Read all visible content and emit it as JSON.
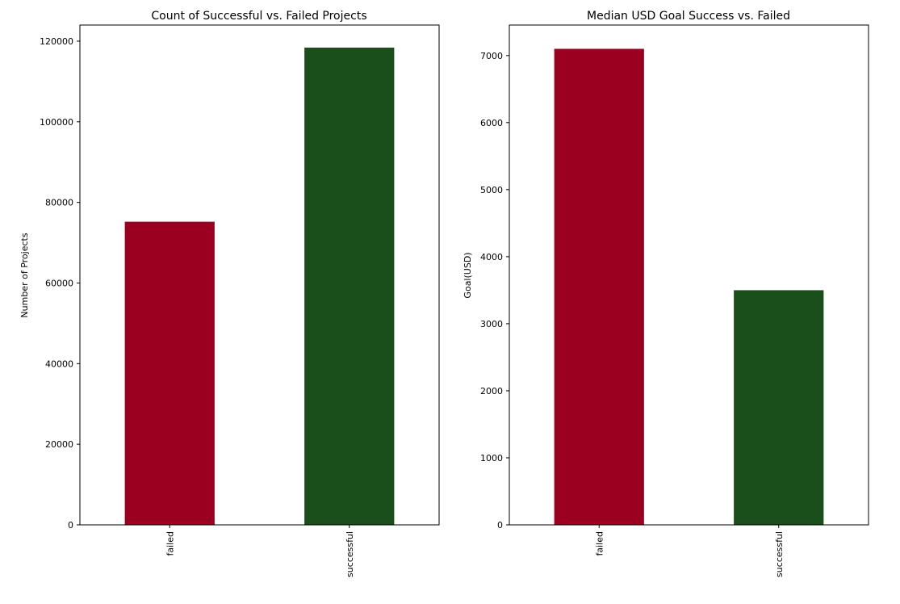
{
  "chart_data": [
    {
      "type": "bar",
      "title": "Count of Successful vs. Failed Projects",
      "xlabel": "",
      "ylabel": "Number of Projects",
      "categories": [
        "failed",
        "successful"
      ],
      "values": [
        75200,
        118400
      ],
      "colors": [
        "#9b0020",
        "#1a4e1a"
      ],
      "ylim": [
        0,
        124000
      ],
      "yticks": [
        0,
        20000,
        40000,
        60000,
        80000,
        100000,
        120000
      ],
      "ytick_labels": [
        "0",
        "20000",
        "40000",
        "60000",
        "80000",
        "100000",
        "120000"
      ],
      "grid": false
    },
    {
      "type": "bar",
      "title": "Median USD Goal Success vs. Failed",
      "xlabel": "",
      "ylabel": "Goal(USD)",
      "categories": [
        "failed",
        "successful"
      ],
      "values": [
        7100,
        3500
      ],
      "colors": [
        "#9b0020",
        "#1a4e1a"
      ],
      "ylim": [
        0,
        7455
      ],
      "yticks": [
        0,
        1000,
        2000,
        3000,
        4000,
        5000,
        6000,
        7000
      ],
      "ytick_labels": [
        "0",
        "1000",
        "2000",
        "3000",
        "4000",
        "5000",
        "6000",
        "7000"
      ],
      "grid": false
    }
  ]
}
